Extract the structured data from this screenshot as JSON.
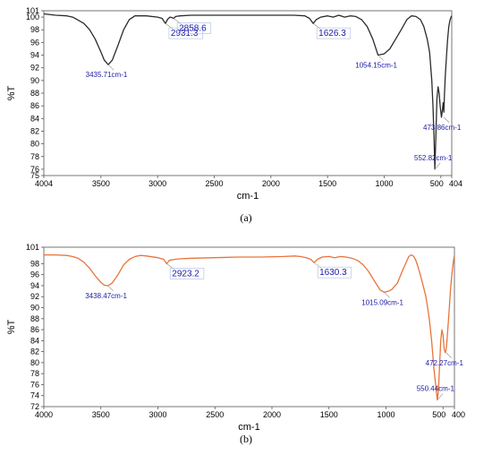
{
  "chart_data": [
    {
      "type": "line",
      "caption": "(a)",
      "xlabel": "cm-1",
      "ylabel": "%T",
      "xlim": [
        4004,
        404
      ],
      "ylim": [
        75,
        101
      ],
      "x_ticks": [
        {
          "v": 4004,
          "label": "4004"
        },
        {
          "v": 3500,
          "label": "3500"
        },
        {
          "v": 3000,
          "label": "3000"
        },
        {
          "v": 2500,
          "label": "2500"
        },
        {
          "v": 2000,
          "label": "2000"
        },
        {
          "v": 1500,
          "label": "1500"
        },
        {
          "v": 1000,
          "label": "1000"
        },
        {
          "v": 500,
          "label": "500"
        },
        {
          "v": 404,
          "label": "404"
        }
      ],
      "y_ticks": [
        101,
        100,
        98,
        96,
        94,
        92,
        90,
        88,
        86,
        84,
        82,
        80,
        78,
        76,
        75
      ],
      "series": [
        {
          "color": "#2b2b2b",
          "x": [
            4004,
            3900,
            3800,
            3750,
            3700,
            3650,
            3600,
            3550,
            3500,
            3470,
            3435.71,
            3400,
            3350,
            3300,
            3250,
            3200,
            3100,
            3000,
            2960,
            2931.3,
            2910,
            2890,
            2870,
            2858.6,
            2840,
            2800,
            2700,
            2500,
            2300,
            2100,
            1900,
            1800,
            1700,
            1660,
            1626.3,
            1600,
            1560,
            1500,
            1450,
            1400,
            1350,
            1300,
            1250,
            1200,
            1150,
            1100,
            1054.15,
            1000,
            950,
            900,
            850,
            800,
            760,
            720,
            680,
            650,
            620,
            600,
            580,
            570,
            560,
            552.82,
            545,
            535,
            525,
            515,
            505,
            495,
            485,
            480,
            473.86,
            468,
            460,
            450,
            440,
            430,
            420,
            410,
            404
          ],
          "y": [
            100.5,
            100.3,
            100.2,
            100.0,
            99.5,
            99.0,
            98.0,
            96.5,
            94.5,
            93.2,
            92.5,
            93.2,
            95.5,
            98.0,
            99.6,
            100.2,
            100.2,
            100.0,
            99.8,
            99.0,
            99.7,
            100.0,
            99.9,
            99.8,
            100.1,
            100.2,
            100.3,
            100.3,
            100.3,
            100.3,
            100.3,
            100.3,
            100.2,
            99.8,
            99.0,
            99.6,
            100.0,
            100.2,
            100.0,
            100.3,
            100.0,
            100.2,
            100.1,
            99.6,
            98.5,
            96.5,
            94.0,
            94.2,
            95.0,
            96.5,
            98.0,
            99.6,
            100.2,
            100.1,
            99.6,
            98.5,
            96.5,
            94.5,
            90.0,
            86.0,
            81.0,
            76.0,
            80.5,
            87.0,
            89.0,
            88.0,
            85.8,
            84.2,
            85.5,
            86.5,
            85.0,
            88.0,
            91.0,
            94.0,
            96.5,
            98.5,
            99.5,
            100.0,
            100.2
          ]
        }
      ],
      "annotations": [
        {
          "text": "3435.71cm-1",
          "x": 3435.71,
          "y": 92.5,
          "size": "small"
        },
        {
          "text": "2931.3",
          "x": 2931.3,
          "y": 99.0,
          "size": "large"
        },
        {
          "text": "2858.6",
          "x": 2858.6,
          "y": 99.8,
          "size": "large"
        },
        {
          "text": "1626.3",
          "x": 1626.3,
          "y": 99.0,
          "size": "large"
        },
        {
          "text": "1054.15cm-1",
          "x": 1054.15,
          "y": 94.0,
          "size": "small"
        },
        {
          "text": "552.82cm-1",
          "x": 552.82,
          "y": 76.0,
          "size": "small"
        },
        {
          "text": "473.86cm-1",
          "x": 473.86,
          "y": 84.2,
          "size": "small"
        }
      ]
    },
    {
      "type": "line",
      "caption": "(b)",
      "xlabel": "cm-1",
      "ylabel": "%T",
      "xlim": [
        4000,
        400
      ],
      "ylim": [
        72,
        101
      ],
      "x_ticks": [
        {
          "v": 4000,
          "label": "4000"
        },
        {
          "v": 3500,
          "label": "3500"
        },
        {
          "v": 3000,
          "label": "3000"
        },
        {
          "v": 2500,
          "label": "2500"
        },
        {
          "v": 2000,
          "label": "2000"
        },
        {
          "v": 1500,
          "label": "1500"
        },
        {
          "v": 1000,
          "label": "1000"
        },
        {
          "v": 500,
          "label": "500"
        },
        {
          "v": 400,
          "label": "400"
        }
      ],
      "y_ticks": [
        101,
        98,
        96,
        94,
        92,
        90,
        88,
        86,
        84,
        82,
        80,
        78,
        76,
        74,
        72
      ],
      "series": [
        {
          "color": "#e8743b",
          "x": [
            4000,
            3900,
            3800,
            3750,
            3700,
            3650,
            3600,
            3550,
            3500,
            3470,
            3438.47,
            3400,
            3350,
            3300,
            3250,
            3200,
            3150,
            3100,
            3000,
            2950,
            2923.2,
            2900,
            2850,
            2800,
            2700,
            2500,
            2300,
            2100,
            1900,
            1800,
            1750,
            1700,
            1660,
            1630.3,
            1600,
            1560,
            1500,
            1450,
            1400,
            1350,
            1300,
            1250,
            1200,
            1150,
            1100,
            1050,
            1015.09,
            980,
            950,
            900,
            850,
            800,
            780,
            760,
            740,
            720,
            700,
            680,
            650,
            620,
            600,
            580,
            565,
            550.44,
            540,
            530,
            520,
            510,
            500,
            490,
            480,
            472.27,
            465,
            455,
            445,
            435,
            425,
            415,
            405,
            400
          ],
          "y": [
            99.6,
            99.6,
            99.5,
            99.3,
            99.0,
            98.3,
            97.2,
            95.8,
            94.6,
            94.1,
            94.0,
            94.5,
            96.0,
            97.8,
            98.8,
            99.3,
            99.5,
            99.4,
            99.1,
            98.8,
            98.0,
            98.6,
            98.8,
            98.9,
            99.0,
            99.1,
            99.2,
            99.2,
            99.3,
            99.4,
            99.3,
            99.1,
            98.8,
            98.2,
            98.8,
            99.2,
            99.3,
            99.1,
            99.3,
            99.2,
            99.0,
            98.6,
            97.8,
            96.5,
            94.8,
            93.2,
            92.8,
            93.0,
            93.3,
            94.5,
            97.0,
            99.3,
            99.6,
            99.4,
            98.7,
            97.5,
            96.0,
            94.5,
            92.0,
            88.0,
            84.0,
            79.0,
            76.0,
            73.2,
            75.0,
            79.5,
            84.0,
            86.0,
            85.0,
            82.5,
            81.8,
            82.5,
            84.0,
            87.0,
            90.0,
            93.0,
            95.5,
            97.5,
            99.0,
            99.5
          ]
        }
      ],
      "annotations": [
        {
          "text": "3438.47cm-1",
          "x": 3438.47,
          "y": 94.0,
          "size": "small"
        },
        {
          "text": "2923.2",
          "x": 2923.2,
          "y": 98.0,
          "size": "large"
        },
        {
          "text": "1630.3",
          "x": 1630.3,
          "y": 98.2,
          "size": "large"
        },
        {
          "text": "1015.09cm-1",
          "x": 1015.09,
          "y": 92.8,
          "size": "small"
        },
        {
          "text": "550.44cm-1",
          "x": 550.44,
          "y": 73.2,
          "size": "small"
        },
        {
          "text": "472.27cm-1",
          "x": 472.27,
          "y": 81.8,
          "size": "small"
        }
      ]
    }
  ]
}
